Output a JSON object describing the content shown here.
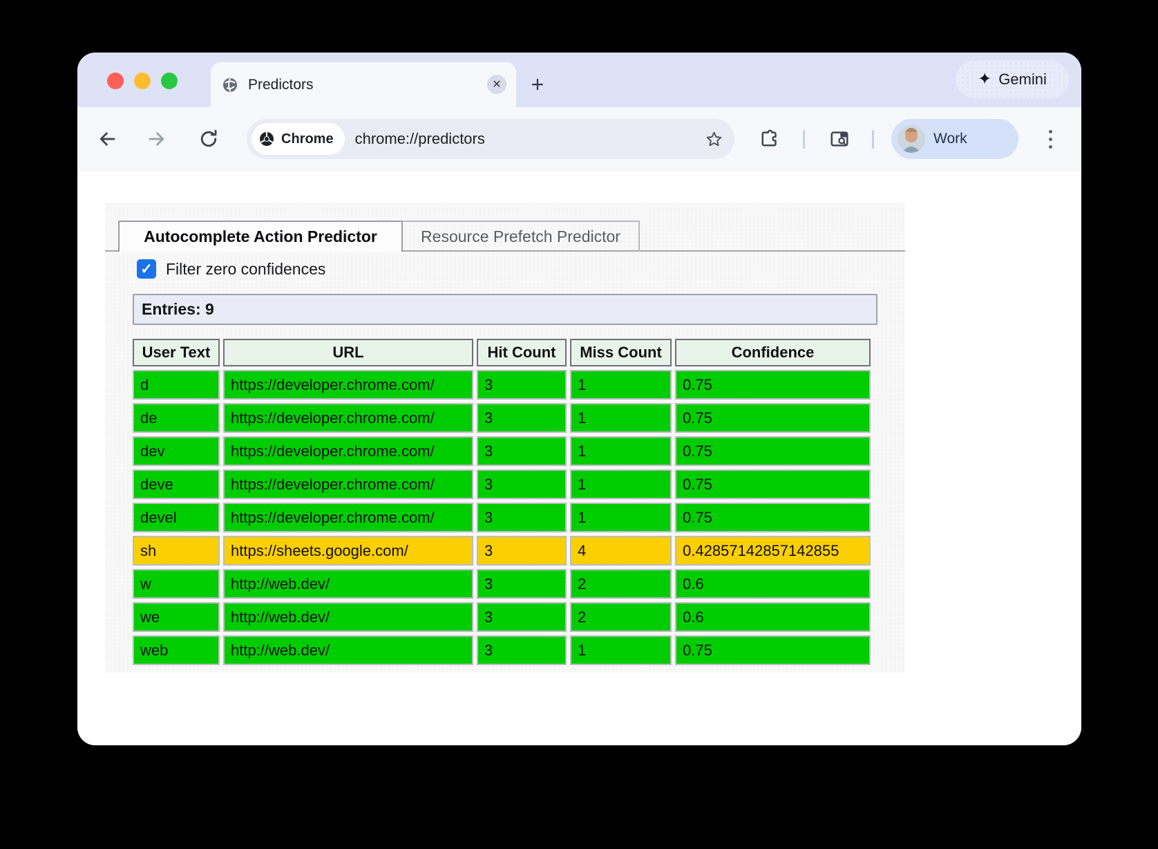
{
  "chrome": {
    "tab_title": "Predictors",
    "new_tab_label": "+",
    "close_tab_label": "✕",
    "gemini_label": "Gemini",
    "chip_label": "Chrome",
    "url": "chrome://predictors",
    "profile_label": "Work"
  },
  "page": {
    "tabs": [
      {
        "label": "Autocomplete Action Predictor",
        "active": true
      },
      {
        "label": "Resource Prefetch Predictor",
        "active": false
      }
    ],
    "filter_label": "Filter zero confidences",
    "filter_checked": true,
    "entries_label": "Entries: 9",
    "table": {
      "headers": [
        "User Text",
        "URL",
        "Hit Count",
        "Miss Count",
        "Confidence"
      ],
      "rows": [
        {
          "user_text": "d",
          "url": "https://developer.chrome.com/",
          "hit_count": "3",
          "miss_count": "1",
          "confidence": "0.75",
          "color": "green"
        },
        {
          "user_text": "de",
          "url": "https://developer.chrome.com/",
          "hit_count": "3",
          "miss_count": "1",
          "confidence": "0.75",
          "color": "green"
        },
        {
          "user_text": "dev",
          "url": "https://developer.chrome.com/",
          "hit_count": "3",
          "miss_count": "1",
          "confidence": "0.75",
          "color": "green"
        },
        {
          "user_text": "deve",
          "url": "https://developer.chrome.com/",
          "hit_count": "3",
          "miss_count": "1",
          "confidence": "0.75",
          "color": "green"
        },
        {
          "user_text": "devel",
          "url": "https://developer.chrome.com/",
          "hit_count": "3",
          "miss_count": "1",
          "confidence": "0.75",
          "color": "green"
        },
        {
          "user_text": "sh",
          "url": "https://sheets.google.com/",
          "hit_count": "3",
          "miss_count": "4",
          "confidence": "0.42857142857142855",
          "color": "yellow"
        },
        {
          "user_text": "w",
          "url": "http://web.dev/",
          "hit_count": "3",
          "miss_count": "2",
          "confidence": "0.6",
          "color": "green"
        },
        {
          "user_text": "we",
          "url": "http://web.dev/",
          "hit_count": "3",
          "miss_count": "2",
          "confidence": "0.6",
          "color": "green"
        },
        {
          "user_text": "web",
          "url": "http://web.dev/",
          "hit_count": "3",
          "miss_count": "1",
          "confidence": "0.75",
          "color": "green"
        }
      ]
    },
    "colors": {
      "green": "#00cd00",
      "yellow": "#fbcf00"
    }
  }
}
